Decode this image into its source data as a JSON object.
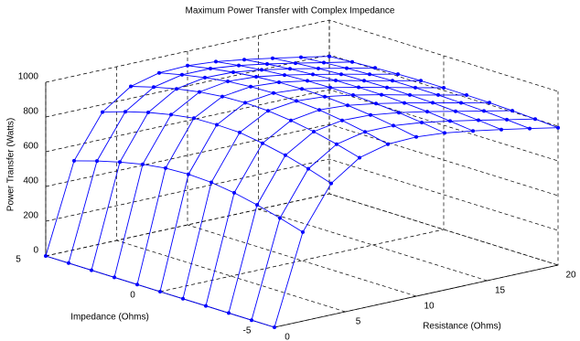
{
  "chart_data": {
    "type": "surface",
    "title": "Maximum Power Transfer with Complex Impedance",
    "xlabel": "Resistance (Ohms)",
    "ylabel": "Impedance (Ohms)",
    "zlabel": "Power Transfer (Watts)",
    "x": [
      0,
      2,
      4,
      6,
      8,
      10,
      12,
      14,
      16,
      18,
      20
    ],
    "y": [
      -5,
      -4,
      -3,
      -2,
      -1,
      0,
      1,
      2,
      3,
      4,
      5
    ],
    "z": [
      [
        0,
        512,
        757,
        869,
        911,
        917,
        904,
        880,
        852,
        822,
        791
      ],
      [
        0,
        552,
        800,
        906,
        941,
        941,
        923,
        896,
        865,
        832,
        800
      ],
      [
        0,
        587,
        837,
        937,
        966,
        961,
        939,
        909,
        875,
        841,
        807
      ],
      [
        0,
        615,
        865,
        960,
        985,
        976,
        950,
        918,
        883,
        847,
        812
      ],
      [
        0,
        634,
        886,
        975,
        996,
        985,
        958,
        924,
        887,
        851,
        815
      ],
      [
        0,
        640,
        889,
        980,
        1000,
        988,
        960,
        926,
        889,
        852,
        816
      ],
      [
        0,
        634,
        886,
        975,
        996,
        985,
        958,
        924,
        887,
        851,
        815
      ],
      [
        0,
        615,
        865,
        960,
        985,
        976,
        950,
        918,
        883,
        847,
        812
      ],
      [
        0,
        587,
        837,
        937,
        966,
        961,
        939,
        909,
        875,
        841,
        807
      ],
      [
        0,
        552,
        800,
        906,
        941,
        941,
        923,
        896,
        865,
        832,
        800
      ],
      [
        0,
        512,
        757,
        869,
        911,
        917,
        904,
        880,
        852,
        822,
        791
      ]
    ],
    "xlim": [
      0,
      20
    ],
    "ylim": [
      -5,
      5
    ],
    "zlim": [
      0,
      1000
    ],
    "xticks": [
      0,
      5,
      10,
      15,
      20
    ],
    "yticks": [
      -5,
      0,
      5
    ],
    "zticks": [
      0,
      200,
      400,
      600,
      800,
      1000
    ],
    "grid": true,
    "color": "#0000ff"
  }
}
